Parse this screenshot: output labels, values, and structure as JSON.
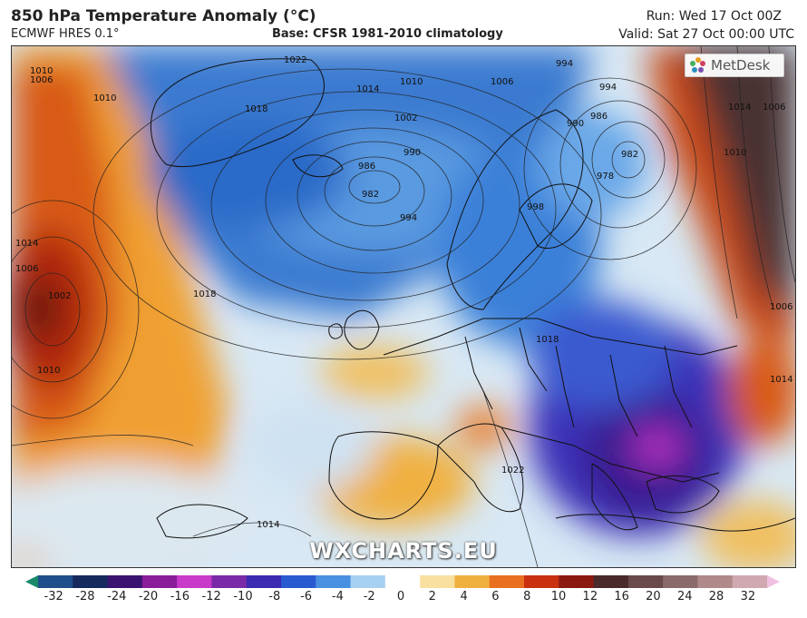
{
  "header": {
    "title": "850 hPa Temperature Anomaly (°C)",
    "model": "ECMWF HRES 0.1°",
    "base": "Base: CFSR 1981-2010 climatology",
    "run": "Run: Wed 17 Oct 00Z",
    "valid": "Valid: Sat 27 Oct 00:00 UTC"
  },
  "logo": {
    "text": "MetDesk",
    "icon": "metdesk-flower-icon"
  },
  "watermark": "WXCHARTS.EU",
  "isobars": [
    {
      "label": "1022"
    },
    {
      "label": "1014"
    },
    {
      "label": "1010"
    },
    {
      "label": "1006"
    },
    {
      "label": "1002"
    },
    {
      "label": "990"
    },
    {
      "label": "986"
    },
    {
      "label": "982"
    },
    {
      "label": "994"
    },
    {
      "label": "1018"
    },
    {
      "label": "998"
    },
    {
      "label": "978"
    },
    {
      "label": "1014"
    },
    {
      "label": "1010"
    },
    {
      "label": "1006"
    },
    {
      "label": "1010"
    },
    {
      "label": "1018"
    },
    {
      "label": "1018"
    },
    {
      "label": "1022"
    },
    {
      "label": "1014"
    },
    {
      "label": "1014"
    },
    {
      "label": "1006"
    },
    {
      "label": "1010"
    },
    {
      "label": "994"
    },
    {
      "label": "990"
    },
    {
      "label": "986"
    },
    {
      "label": "982"
    },
    {
      "label": "994"
    },
    {
      "label": "1014"
    },
    {
      "label": "1010"
    },
    {
      "label": "1006"
    },
    {
      "label": "1006"
    },
    {
      "label": "1002"
    }
  ],
  "colorbar": {
    "ticks": [
      "-32",
      "-28",
      "-24",
      "-20",
      "-16",
      "-12",
      "-10",
      "-8",
      "-6",
      "-4",
      "-2",
      "0",
      "2",
      "4",
      "6",
      "8",
      "10",
      "12",
      "16",
      "20",
      "24",
      "28",
      "32"
    ],
    "colors": [
      "#1a8a6a",
      "#1f4e8a",
      "#162a5e",
      "#3a1470",
      "#8a1d9a",
      "#c83ac8",
      "#7a2aa8",
      "#3c2ab0",
      "#2a5ad0",
      "#4a90e0",
      "#a8d0f0",
      "#ffffff",
      "#f8e0a0",
      "#f0b040",
      "#e87020",
      "#c83010",
      "#8a1a10",
      "#4a2a2a",
      "#6a4a4a",
      "#8a6a6a",
      "#b08a8a",
      "#d0a8b0",
      "#f0c0e0"
    ]
  }
}
